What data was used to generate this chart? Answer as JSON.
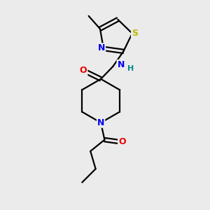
{
  "background_color": "#ebebeb",
  "atom_colors": {
    "C": "#000000",
    "N": "#0000ee",
    "O": "#ee0000",
    "S": "#bbbb00",
    "H": "#008888"
  },
  "figsize": [
    3.0,
    3.0
  ],
  "dpi": 100
}
